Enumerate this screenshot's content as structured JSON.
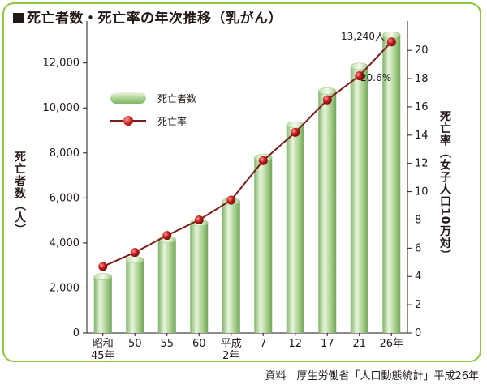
{
  "title": "死亡者数・死亡率の年次推移（乳がん）",
  "source": "資料　厚生労働省「人口動態統計」平成26年",
  "colors": {
    "frame": "#8dc63f",
    "line": "#7b1d1d",
    "marker": "#c41c1c",
    "bar": "#a9cf8f"
  },
  "chart_data": {
    "type": "bar",
    "categories": [
      "昭和45年",
      "50",
      "55",
      "60",
      "平成2年",
      "7",
      "12",
      "17",
      "21",
      "26年"
    ],
    "x_tick_labels": [
      [
        "昭和",
        "45年"
      ],
      [
        "50"
      ],
      [
        "55"
      ],
      [
        "60"
      ],
      [
        "平成",
        "2年"
      ],
      [
        "7"
      ],
      [
        "12"
      ],
      [
        "17"
      ],
      [
        "21"
      ],
      [
        "26年"
      ]
    ],
    "series": [
      {
        "name": "死亡者数",
        "type": "bar",
        "axis": "left",
        "values": [
          2500,
          3250,
          4150,
          4900,
          5850,
          7800,
          9250,
          10750,
          11850,
          13240
        ]
      },
      {
        "name": "死亡率",
        "type": "line",
        "axis": "right",
        "values": [
          4.7,
          5.7,
          6.9,
          8.0,
          9.4,
          12.2,
          14.2,
          16.5,
          18.2,
          20.6
        ]
      }
    ],
    "ylabel": "死亡者数（人）",
    "ylabel_right": "死亡率（女子人口10万対）",
    "ylim": [
      0,
      13500
    ],
    "ylim_right": [
      0,
      21.5
    ],
    "y_ticks": [
      "0",
      "2,000",
      "4,000",
      "6,000",
      "8,000",
      "10,000",
      "12,000"
    ],
    "y_tick_values": [
      0,
      2000,
      4000,
      6000,
      8000,
      10000,
      12000
    ],
    "y_ticks_right": [
      "0",
      "2",
      "4",
      "6",
      "8",
      "10",
      "12",
      "14",
      "16",
      "18",
      "20"
    ],
    "y_tick_values_right": [
      0,
      2,
      4,
      6,
      8,
      10,
      12,
      14,
      16,
      18,
      20
    ],
    "annotations": {
      "deaths_last": "13,240人",
      "rate_last": "20.6%"
    },
    "legend": {
      "bar": "死亡者数",
      "line": "死亡率"
    },
    "legend_position": "upper-left",
    "grid": false
  }
}
